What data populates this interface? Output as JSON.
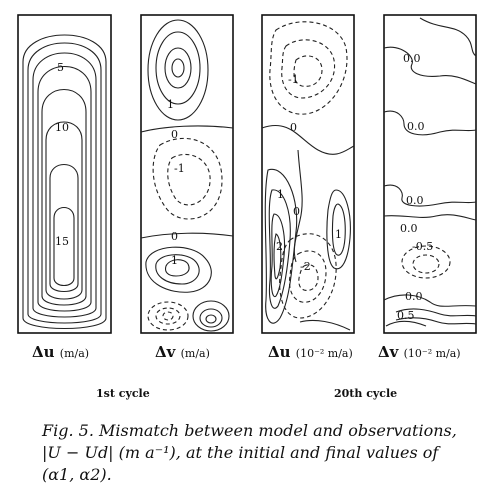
{
  "panels": [
    {
      "symbol": "Δu",
      "unit": "(m/a)"
    },
    {
      "symbol": "Δv",
      "unit": "(m/a)"
    },
    {
      "symbol": "Δu",
      "unit": "(10⁻² m/a)"
    },
    {
      "symbol": "Δv",
      "unit": "(10⁻² m/a)"
    }
  ],
  "cycles": [
    "1st cycle",
    "20th cycle"
  ],
  "contour_labels": {
    "p1": [
      "5",
      "10",
      "15"
    ],
    "p2": [
      "1",
      "0",
      "-1",
      "0",
      "1"
    ],
    "p3": [
      "-1",
      "0",
      "1",
      "0",
      "2",
      "-2",
      "1"
    ],
    "p4": [
      "0.0",
      "0.0",
      "0.0",
      "0.0",
      "-0.5",
      "0.0",
      "0.5"
    ]
  },
  "caption": {
    "line1": "Fig. 5. Mismatch between model and observations,",
    "line2": "|U − Ud| (m a⁻¹), at the initial and final values of",
    "line3": "(α1, α2)."
  }
}
